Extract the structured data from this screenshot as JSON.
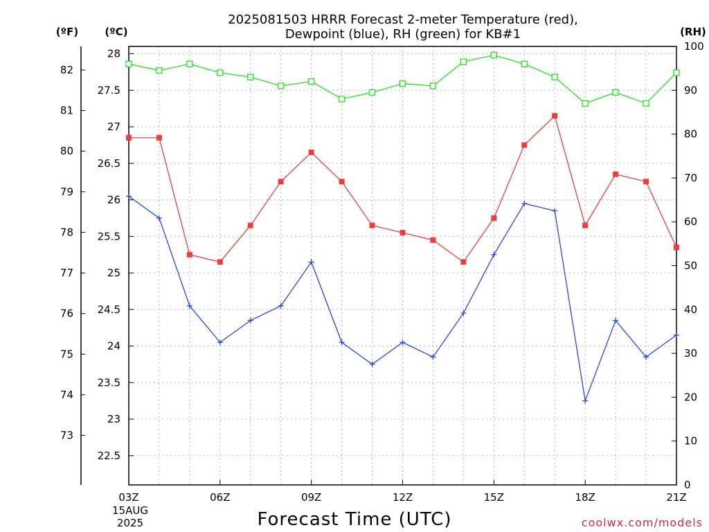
{
  "chart_data": {
    "type": "line",
    "title_lines": [
      "2025081503 HRRR Forecast 2-meter Temperature (red),",
      "Dewpoint (blue), RH (green) for KB#1"
    ],
    "xlabel": "Forecast Time (UTC)",
    "credit": "coolwx.com/models",
    "units": {
      "fahrenheit": "(ºF)",
      "celsius": "(ºC)",
      "rh": "(RH)"
    },
    "x_ticks": [
      {
        "hour": 3,
        "label": "03Z"
      },
      {
        "hour": 6,
        "label": "06Z"
      },
      {
        "hour": 9,
        "label": "09Z"
      },
      {
        "hour": 12,
        "label": "12Z"
      },
      {
        "hour": 15,
        "label": "15Z"
      },
      {
        "hour": 18,
        "label": "18Z"
      },
      {
        "hour": 21,
        "label": "21Z"
      }
    ],
    "date_lines": [
      "15AUG",
      "2025"
    ],
    "xlim": [
      3,
      21
    ],
    "celsius_ticks": [
      22.5,
      23,
      23.5,
      24,
      24.5,
      25,
      25.5,
      26,
      26.5,
      27,
      27.5,
      28
    ],
    "celsius_ylim": [
      22.1,
      28.1
    ],
    "fahrenheit_ticks": [
      73,
      74,
      75,
      76,
      77,
      78,
      79,
      80,
      81,
      82
    ],
    "rh_ticks": [
      0,
      10,
      20,
      30,
      40,
      50,
      60,
      70,
      80,
      90,
      100
    ],
    "rh_ylim": [
      0,
      100
    ],
    "grid": true,
    "series": [
      {
        "key": "temperature",
        "color": "#f03c3c",
        "marker": "filled-square",
        "axis": "celsius",
        "x": [
          3,
          4,
          5,
          6,
          7,
          8,
          9,
          10,
          11,
          12,
          13,
          14,
          15,
          16,
          17,
          18,
          19,
          20,
          21
        ],
        "values": [
          26.85,
          26.85,
          25.25,
          25.15,
          25.65,
          26.25,
          26.65,
          26.25,
          25.65,
          25.55,
          25.45,
          25.15,
          25.75,
          26.75,
          27.15,
          25.65,
          26.35,
          26.25,
          25.35
        ]
      },
      {
        "key": "dewpoint",
        "color": "#2846e6",
        "marker": "plus",
        "axis": "celsius",
        "x": [
          3,
          4,
          5,
          6,
          7,
          8,
          9,
          10,
          11,
          12,
          13,
          14,
          15,
          16,
          17,
          18,
          19,
          20,
          21
        ],
        "values": [
          26.05,
          25.75,
          24.55,
          24.05,
          24.35,
          24.55,
          25.15,
          24.05,
          23.75,
          24.05,
          23.85,
          24.45,
          25.25,
          25.95,
          25.85,
          23.25,
          24.35,
          23.85,
          24.15
        ]
      },
      {
        "key": "rh",
        "color": "#1ee61e",
        "marker": "open-square",
        "axis": "rh",
        "x": [
          3,
          4,
          5,
          6,
          7,
          8,
          9,
          10,
          11,
          12,
          13,
          14,
          15,
          16,
          17,
          18,
          19,
          20,
          21
        ],
        "values": [
          96,
          94.5,
          96,
          94,
          93,
          91,
          92,
          88,
          89.5,
          91.5,
          91,
          96.5,
          98,
          96,
          93,
          87,
          89.5,
          87,
          94
        ]
      }
    ]
  }
}
